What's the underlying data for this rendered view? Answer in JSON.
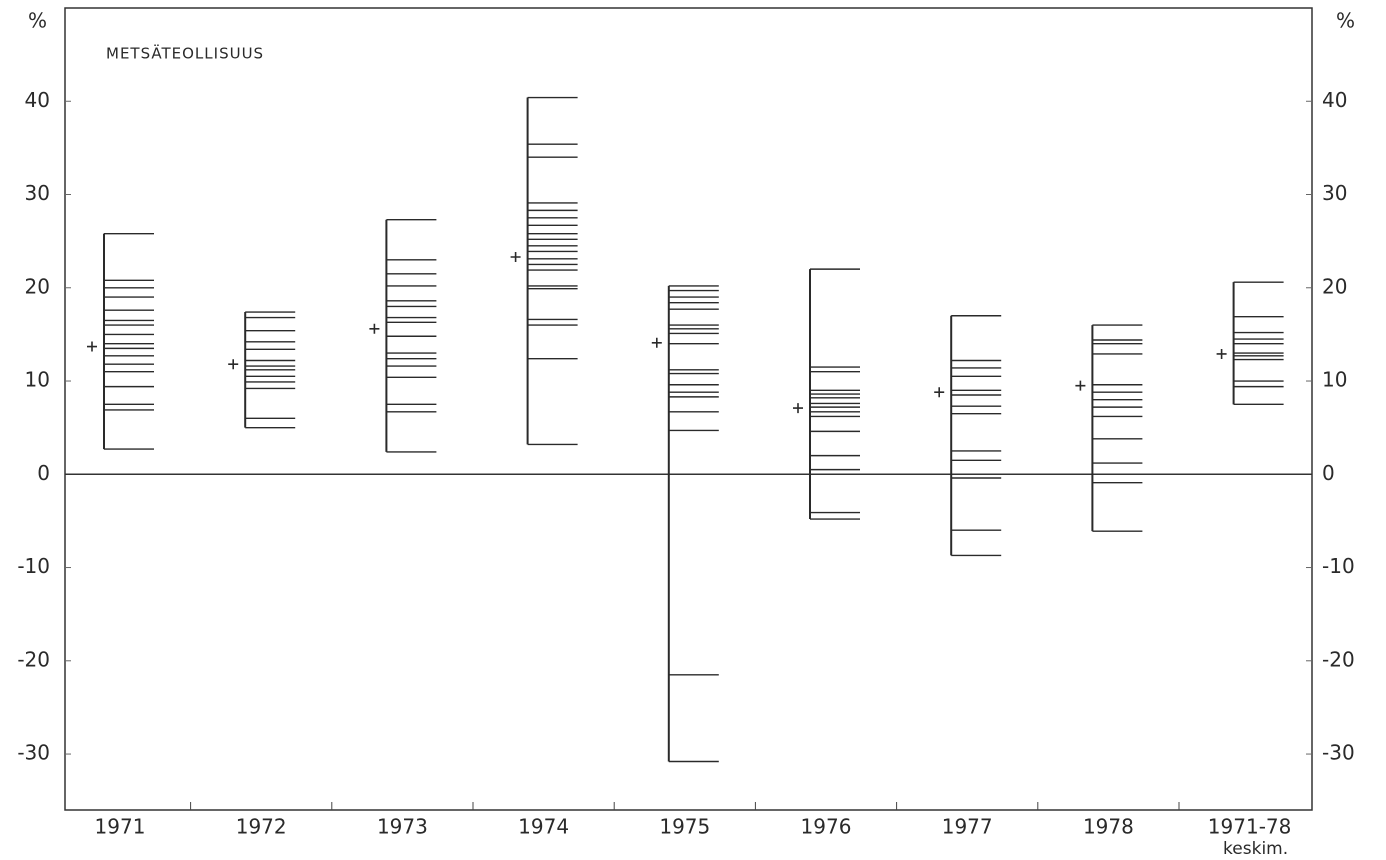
{
  "chart_data": {
    "type": "strip",
    "title": "METSÄTEOLLISUUS",
    "y_unit_left": "%",
    "y_unit_right": "%",
    "categories": [
      "1971",
      "1972",
      "1973",
      "1974",
      "1975",
      "1976",
      "1977",
      "1978",
      "1971-78"
    ],
    "category_note": "keskim.",
    "color": "#2a2a2a",
    "values": [
      [
        25.8,
        20.8,
        20,
        19,
        17.6,
        16.5,
        16,
        15,
        14,
        13.5,
        12.7,
        11.8,
        11,
        9.4,
        7.5,
        6.9,
        2.7
      ],
      [
        17.4,
        16.8,
        15.4,
        14.2,
        13.4,
        12.2,
        11.6,
        11.2,
        10.5,
        9.9,
        9.2,
        6,
        5
      ],
      [
        27.3,
        23,
        21.5,
        20.2,
        18.6,
        18,
        16.8,
        16.3,
        14.8,
        13,
        12.4,
        11.6,
        10.4,
        7.5,
        6.7,
        2.4
      ],
      [
        40.4,
        35.4,
        34,
        29.1,
        28.3,
        27.5,
        26.7,
        25.8,
        25.2,
        24.5,
        23.9,
        23.1,
        22.5,
        21.9,
        20.2,
        19.9,
        16.6,
        16,
        12.4,
        3.2
      ],
      [
        20.2,
        19.7,
        19,
        18.4,
        17.7,
        16,
        15.6,
        15.1,
        14,
        11.2,
        10.8,
        9.6,
        8.8,
        8.3,
        6.7,
        4.7,
        -21.5,
        -30.8
      ],
      [
        22,
        11.5,
        11,
        9,
        8.6,
        8.2,
        7.6,
        7.2,
        6.7,
        6.2,
        4.6,
        2,
        0.5,
        -4.1,
        -4.8
      ],
      [
        17,
        12.2,
        11.4,
        10.5,
        9,
        8.5,
        7.3,
        6.5,
        2.5,
        1.5,
        -0.4,
        -6,
        -8.7
      ],
      [
        16,
        14.4,
        14,
        12.9,
        9.6,
        8.8,
        8,
        7.2,
        6.2,
        3.8,
        1.2,
        -0.9,
        -6.1
      ],
      [
        20.6,
        16.9,
        15.2,
        14.5,
        14,
        13,
        12.7,
        12.3,
        10,
        9.4,
        7.5
      ]
    ],
    "means": [
      13.7,
      11.8,
      15.6,
      23.3,
      14.1,
      7.1,
      8.8,
      9.5,
      12.9
    ],
    "ylim": [
      -36,
      50
    ],
    "yticks": [
      -30,
      -20,
      -10,
      0,
      10,
      20,
      30,
      40
    ]
  }
}
